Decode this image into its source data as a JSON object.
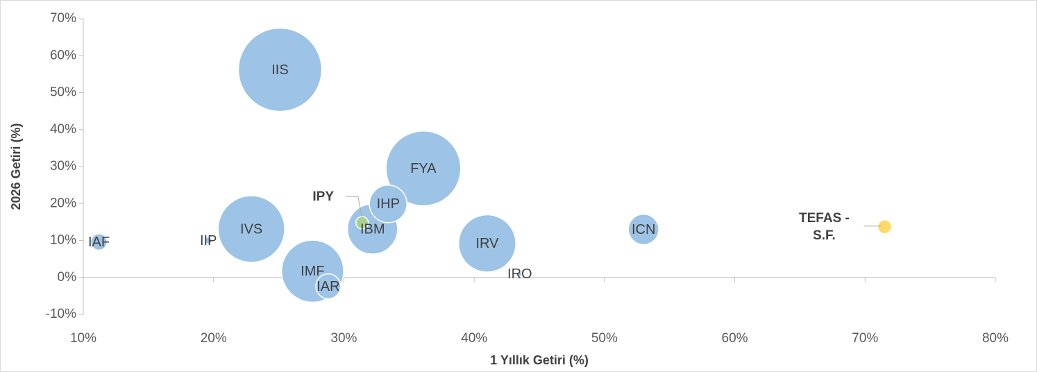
{
  "chart_data": {
    "type": "bubble",
    "x_label": "1 Yıllık Getiri (%)",
    "y_label": "2026 Getiri (%)",
    "xlim": [
      10,
      80
    ],
    "ylim": [
      -10,
      70
    ],
    "xticks": [
      {
        "value": 10,
        "label": "10%"
      },
      {
        "value": 20,
        "label": "20%"
      },
      {
        "value": 30,
        "label": "30%"
      },
      {
        "value": 40,
        "label": "40%"
      },
      {
        "value": 50,
        "label": "50%"
      },
      {
        "value": 60,
        "label": "60%"
      },
      {
        "value": 70,
        "label": "70%"
      },
      {
        "value": 80,
        "label": "80%"
      }
    ],
    "yticks": [
      {
        "value": -10,
        "label": "-10%"
      },
      {
        "value": 0,
        "label": "0%"
      },
      {
        "value": 10,
        "label": "10%"
      },
      {
        "value": 20,
        "label": "20%"
      },
      {
        "value": 30,
        "label": "30%"
      },
      {
        "value": 40,
        "label": "40%"
      },
      {
        "value": 50,
        "label": "50%"
      },
      {
        "value": 60,
        "label": "60%"
      },
      {
        "value": 70,
        "label": "70%"
      }
    ],
    "points": [
      {
        "label": "IIS",
        "x": 25.1,
        "y": 56.2,
        "size": 36,
        "color": "#9dc3e6"
      },
      {
        "label": "FYA",
        "x": 36.1,
        "y": 29.5,
        "size": 29,
        "color": "#9dc3e6"
      },
      {
        "label": "IVS",
        "x": 22.9,
        "y": 13.1,
        "size": 23,
        "color": "#9dc3e6"
      },
      {
        "label": "IMF",
        "x": 27.6,
        "y": 1.7,
        "size": 20,
        "color": "#9dc3e6"
      },
      {
        "label": "IRV",
        "x": 41.0,
        "y": 9.2,
        "size": 17,
        "color": "#9dc3e6"
      },
      {
        "label": "IBM",
        "x": 32.2,
        "y": 13.1,
        "size": 13,
        "color": "#9dc3e6"
      },
      {
        "label": "IHP",
        "x": 33.4,
        "y": 19.9,
        "size": 7.3,
        "color": "#9dc3e6"
      },
      {
        "label": "ICN",
        "x": 53.0,
        "y": 13.0,
        "size": 4.8,
        "color": "#9dc3e6"
      },
      {
        "label": "IAR",
        "x": 28.8,
        "y": -2.4,
        "size": 3.2,
        "color": "#9dc3e6"
      },
      {
        "label": "IAF",
        "x": 11.2,
        "y": 9.6,
        "size": 1.4,
        "color": "#9dc3e6"
      },
      {
        "label": "IPY",
        "x": 31.4,
        "y": 14.8,
        "size": 0.8,
        "color": "#a9d18e",
        "callout": true
      },
      {
        "label": "IIP",
        "x": 19.6,
        "y": 10.0,
        "size": 0.25,
        "color": "#9dc3e6"
      },
      {
        "label": "IRO",
        "x": 43.5,
        "y": 0.9,
        "size": 0.1,
        "color": "#9dc3e6"
      },
      {
        "label": [
          "TEFAS -",
          "S.F."
        ],
        "x": 71.5,
        "y": 13.7,
        "size": 1,
        "color": "#ffd966",
        "callout": true
      }
    ]
  }
}
